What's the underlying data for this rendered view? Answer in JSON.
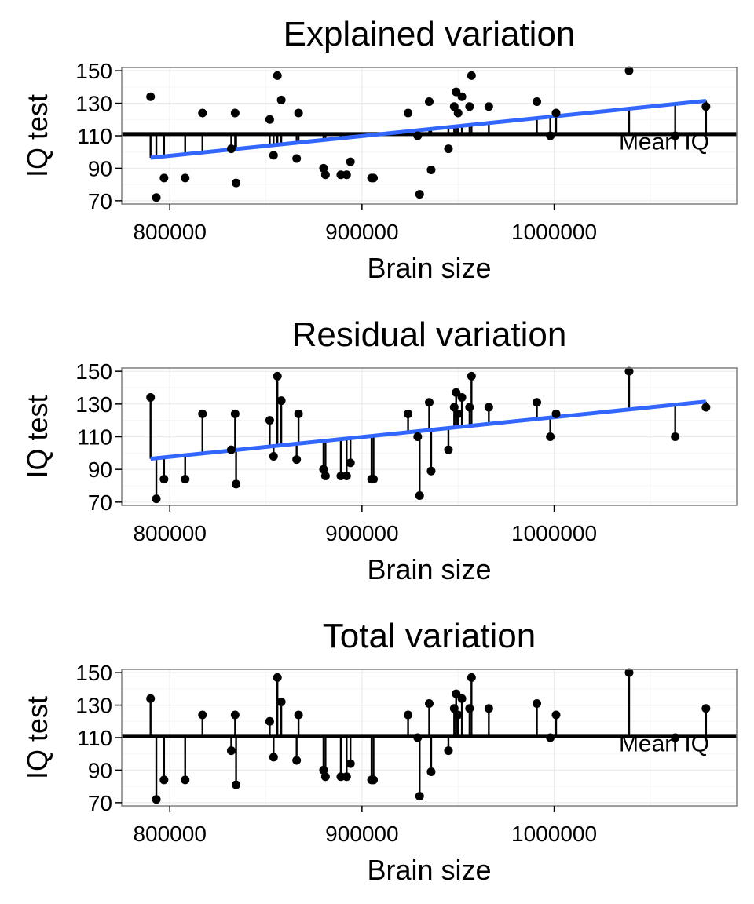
{
  "chart_data": [
    {
      "type": "scatter",
      "title": "Explained variation",
      "xlabel": "Brain size",
      "ylabel": "IQ test",
      "segments": "fitted-to-mean",
      "show_fit_line": true,
      "show_mean_line": true,
      "annotation": "Mean IQ"
    },
    {
      "type": "scatter",
      "title": "Residual variation",
      "xlabel": "Brain size",
      "ylabel": "IQ test",
      "segments": "point-to-fitted",
      "show_fit_line": true,
      "show_mean_line": false,
      "annotation": ""
    },
    {
      "type": "scatter",
      "title": "Total variation",
      "xlabel": "Brain size",
      "ylabel": "IQ test",
      "segments": "point-to-mean",
      "show_fit_line": false,
      "show_mean_line": true,
      "annotation": "Mean IQ"
    }
  ],
  "shared": {
    "xlim": [
      775000,
      1095000
    ],
    "ylim": [
      68,
      152
    ],
    "x_ticks": [
      800000,
      900000,
      1000000
    ],
    "x_tick_labels": [
      "800000",
      "900000",
      "1000000"
    ],
    "y_ticks": [
      70,
      90,
      110,
      130,
      150
    ],
    "y_tick_labels": [
      "70",
      "90",
      "110",
      "130",
      "150"
    ],
    "mean_iq": 111,
    "fit": {
      "x0": 790000,
      "y0": 96.5,
      "x1": 1079000,
      "y1": 131.5
    },
    "grid": true,
    "colors": {
      "points": "#000000",
      "fit_line": "#3366FF",
      "mean_line": "#000000",
      "panel_bg": "#ffffff",
      "grid": "#ebebeb",
      "border": "#7f7f7f"
    },
    "x": [
      790000,
      793000,
      797000,
      808000,
      817000,
      832000,
      834000,
      834500,
      852000,
      854000,
      856000,
      858000,
      866000,
      867000,
      880000,
      881000,
      889000,
      892000,
      894000,
      905000,
      906000,
      924000,
      929000,
      930000,
      935000,
      936000,
      945000,
      948000,
      949000,
      950000,
      952000,
      956000,
      957000,
      966000,
      991000,
      998000,
      1001000,
      1039000,
      1063000,
      1079000
    ],
    "y": [
      134,
      72,
      84,
      84,
      124,
      102,
      124,
      81,
      120,
      98,
      147,
      132,
      96,
      124,
      90,
      86,
      86,
      86,
      94,
      84,
      84,
      124,
      110,
      74,
      131,
      89,
      102,
      128,
      137,
      124,
      134,
      128,
      147,
      128,
      131,
      110,
      124,
      150,
      110,
      128
    ]
  }
}
